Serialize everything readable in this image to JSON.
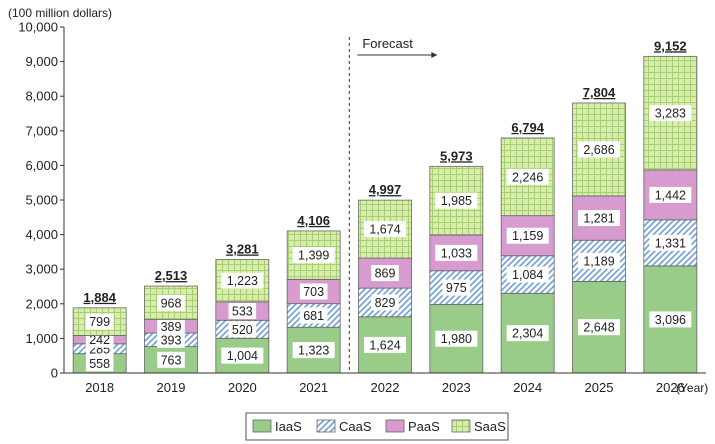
{
  "chart_data": {
    "type": "bar",
    "stacked": true,
    "ylabel": "(100 million dollars)",
    "xunit": "(Year)",
    "forecast_label": "Forecast",
    "forecast_start": "2022",
    "ylim": [
      0,
      10000
    ],
    "yticks": [
      0,
      1000,
      2000,
      3000,
      4000,
      5000,
      6000,
      7000,
      8000,
      9000,
      10000
    ],
    "ytick_labels": [
      "0",
      "1,000",
      "2,000",
      "3,000",
      "4,000",
      "5,000",
      "6,000",
      "7,000",
      "8,000",
      "9,000",
      "10,000"
    ],
    "categories": [
      "2018",
      "2019",
      "2020",
      "2021",
      "2022",
      "2023",
      "2024",
      "2025",
      "2026"
    ],
    "series": [
      {
        "name": "IaaS",
        "color": "#99cc88",
        "pattern": "solid",
        "values": [
          558,
          763,
          1004,
          1323,
          1624,
          1980,
          2304,
          2648,
          3096
        ],
        "labels": [
          "558",
          "763",
          "1,004",
          "1,323",
          "1,624",
          "1,980",
          "2,304",
          "2,648",
          "3,096"
        ]
      },
      {
        "name": "CaaS",
        "color": "#9dc3e6",
        "pattern": "diagonal",
        "values": [
          285,
          393,
          520,
          681,
          829,
          975,
          1084,
          1189,
          1331
        ],
        "labels": [
          "285",
          "393",
          "520",
          "681",
          "829",
          "975",
          "1,084",
          "1,189",
          "1,331"
        ]
      },
      {
        "name": "PaaS",
        "color": "#d79bcf",
        "pattern": "solid",
        "values": [
          242,
          389,
          533,
          703,
          869,
          1033,
          1159,
          1281,
          1442
        ],
        "labels": [
          "242",
          "389",
          "533",
          "703",
          "869",
          "1,033",
          "1,159",
          "1,281",
          "1,442"
        ]
      },
      {
        "name": "SaaS",
        "color": "#d6eba8",
        "pattern": "grid",
        "values": [
          799,
          968,
          1223,
          1399,
          1674,
          1985,
          2246,
          2686,
          3283
        ],
        "labels": [
          "799",
          "968",
          "1,223",
          "1,399",
          "1,674",
          "1,985",
          "2,246",
          "2,686",
          "3,283"
        ]
      }
    ],
    "totals": [
      1884,
      2513,
      3281,
      4106,
      4997,
      5973,
      6794,
      7804,
      9152
    ],
    "total_labels": [
      "1,884",
      "2,513",
      "3,281",
      "4,106",
      "4,997",
      "5,973",
      "6,794",
      "7,804",
      "9,152"
    ],
    "legend_position": "bottom-center",
    "grid": false
  }
}
